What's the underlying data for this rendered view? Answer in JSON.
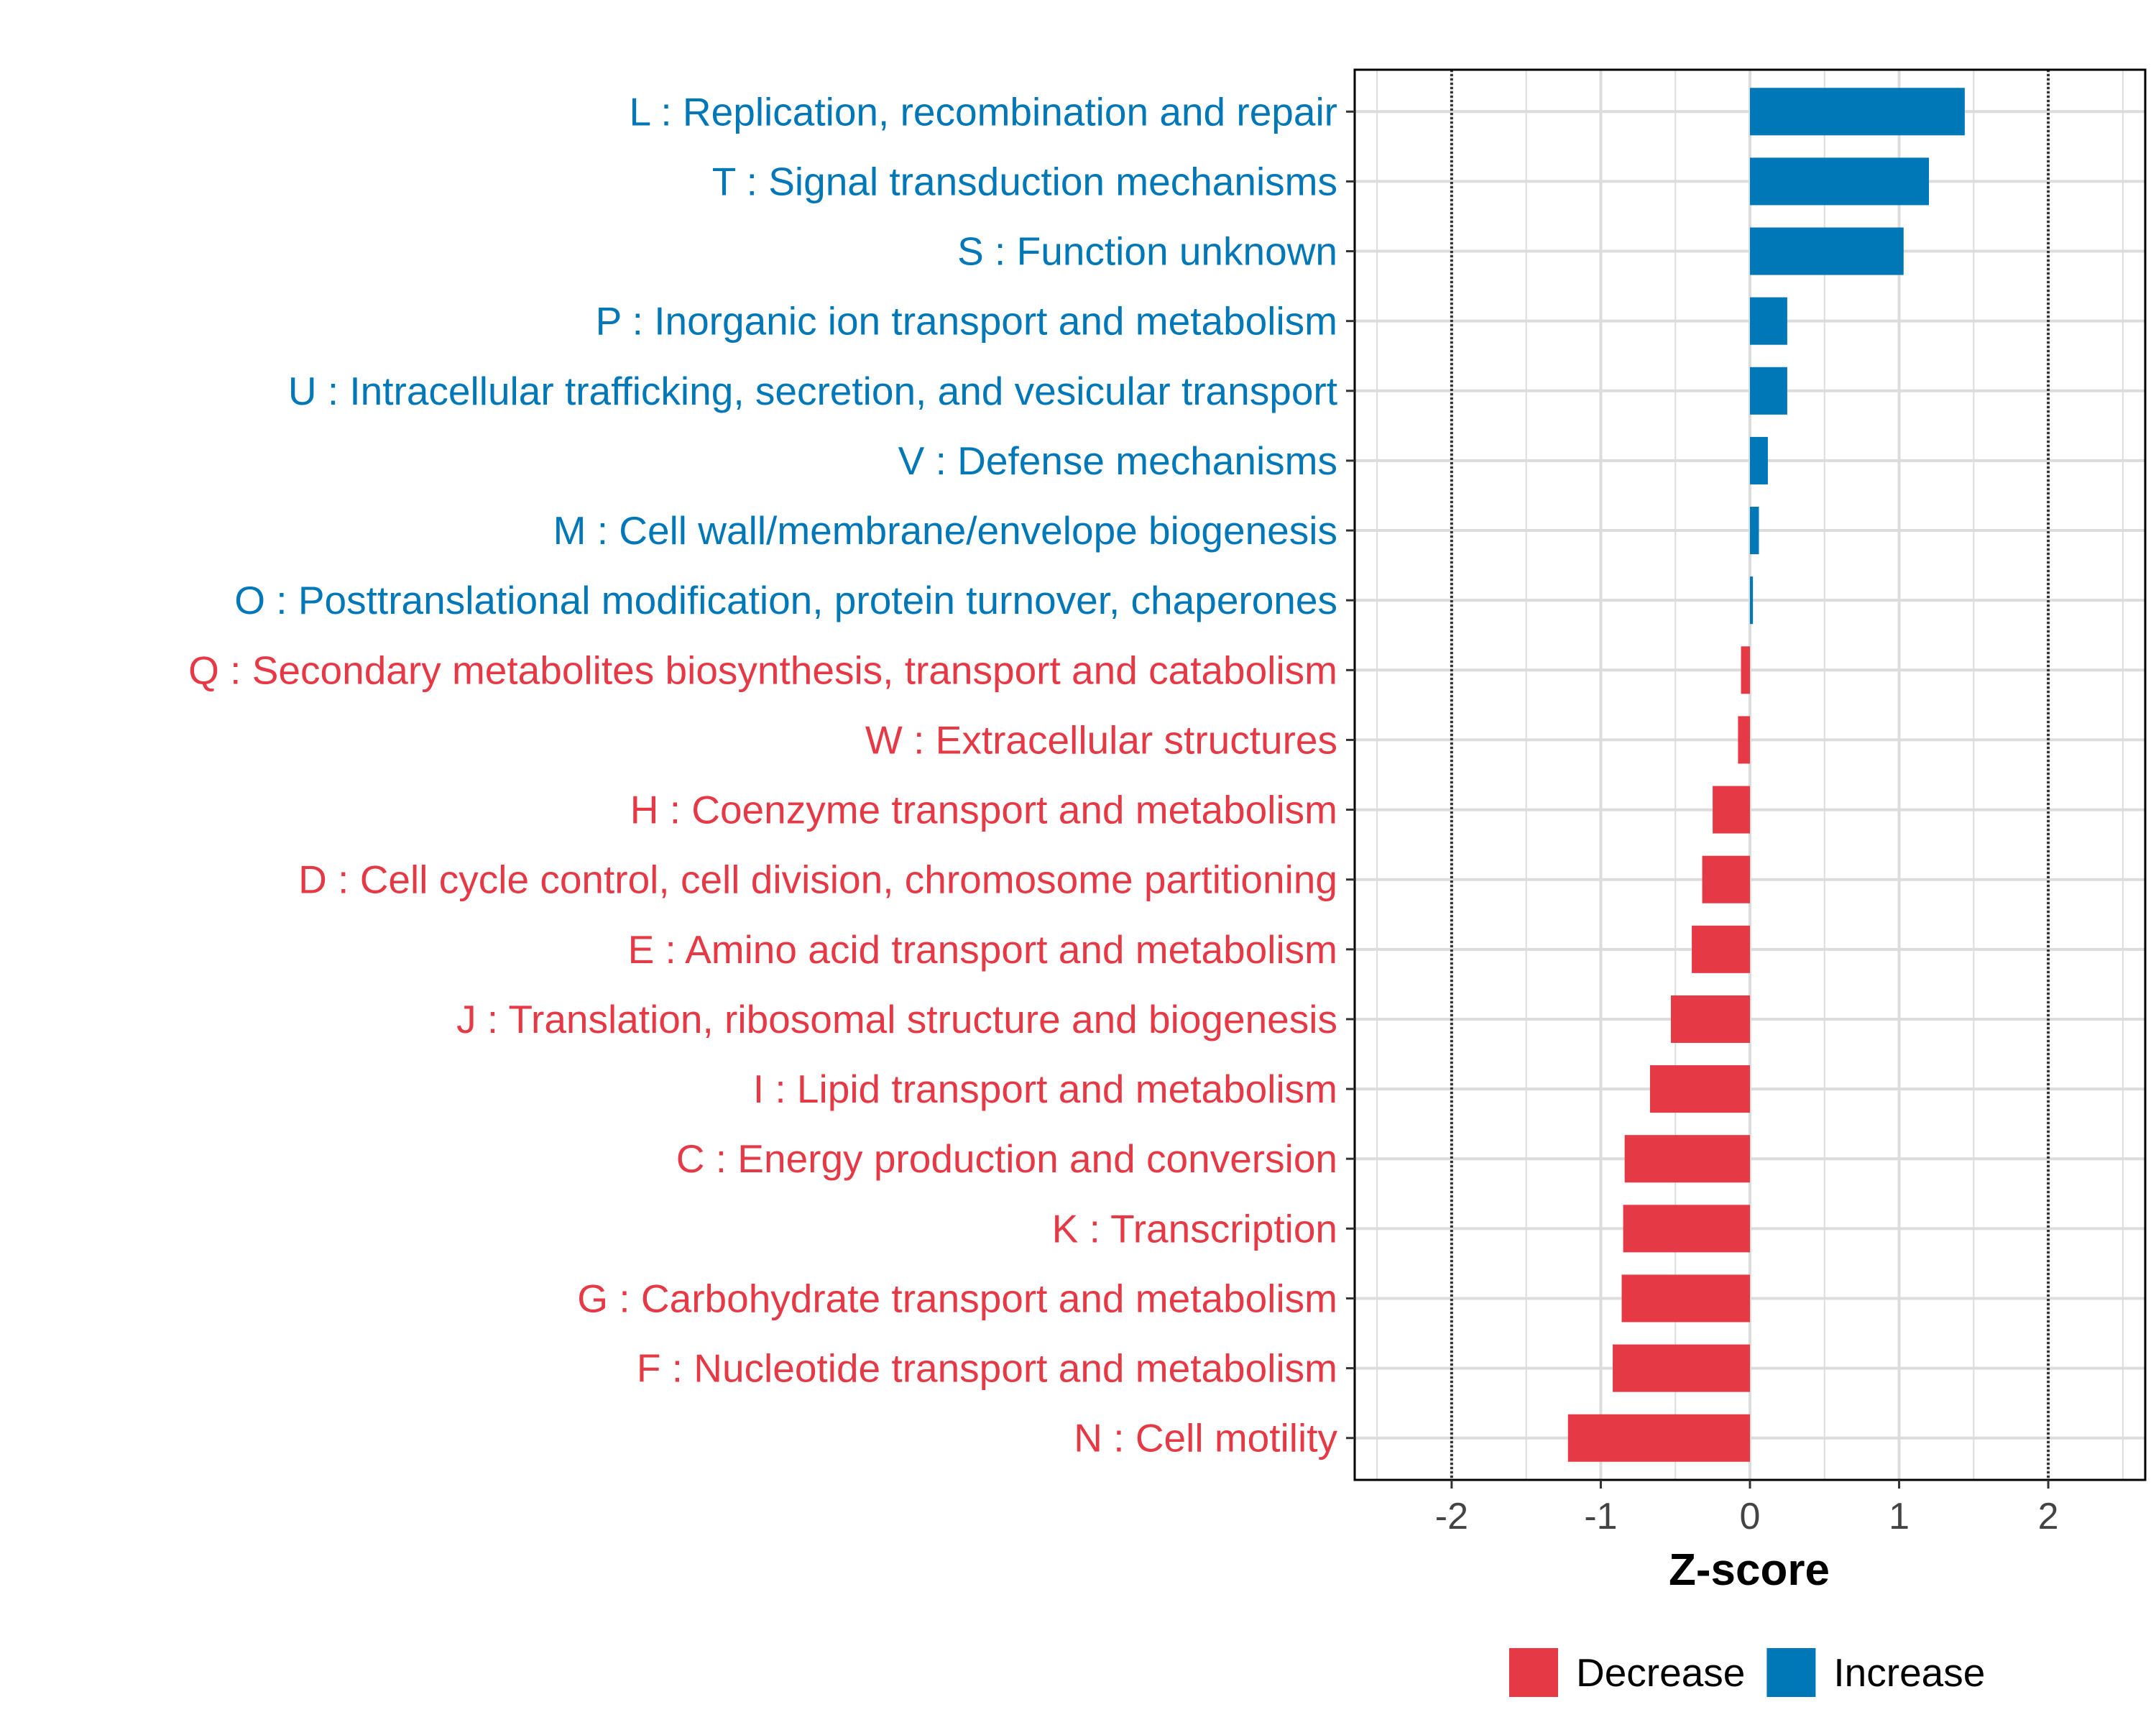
{
  "chart_data": {
    "type": "bar",
    "orientation": "horizontal",
    "title": "",
    "xlabel": "Z-score",
    "ylabel": "",
    "xlim": [
      -2.65,
      2.65
    ],
    "xticks": [
      -2,
      -1,
      0,
      1,
      2
    ],
    "reference_lines": [
      -2,
      2
    ],
    "grid": true,
    "legend_position": "bottom",
    "categories": [
      "L : Replication, recombination and repair",
      "T : Signal transduction mechanisms",
      "S : Function unknown",
      "P : Inorganic ion transport and metabolism",
      "U : Intracellular trafficking, secretion, and vesicular transport",
      "V : Defense mechanisms",
      "M : Cell wall/membrane/envelope biogenesis",
      "O : Posttranslational modification, protein turnover, chaperones",
      "Q : Secondary metabolites biosynthesis, transport and catabolism",
      "W : Extracellular structures",
      "H : Coenzyme transport and metabolism",
      "D : Cell cycle control, cell division, chromosome partitioning",
      "E : Amino acid transport and metabolism",
      "J : Translation, ribosomal structure and biogenesis",
      "I : Lipid transport and metabolism",
      "C : Energy production and conversion",
      "K : Transcription",
      "G : Carbohydrate transport and metabolism",
      "F : Nucleotide transport and metabolism",
      "N : Cell motility"
    ],
    "values": [
      1.44,
      1.2,
      1.03,
      0.25,
      0.25,
      0.12,
      0.06,
      0.02,
      -0.06,
      -0.08,
      -0.25,
      -0.32,
      -0.39,
      -0.53,
      -0.67,
      -0.84,
      -0.85,
      -0.86,
      -0.92,
      -1.22
    ],
    "groups": [
      "Increase",
      "Increase",
      "Increase",
      "Increase",
      "Increase",
      "Increase",
      "Increase",
      "Increase",
      "Decrease",
      "Decrease",
      "Decrease",
      "Decrease",
      "Decrease",
      "Decrease",
      "Decrease",
      "Decrease",
      "Decrease",
      "Decrease",
      "Decrease",
      "Decrease"
    ],
    "legend": [
      {
        "name": "Decrease",
        "color": "#e63946"
      },
      {
        "name": "Increase",
        "color": "#0077b6"
      }
    ]
  }
}
